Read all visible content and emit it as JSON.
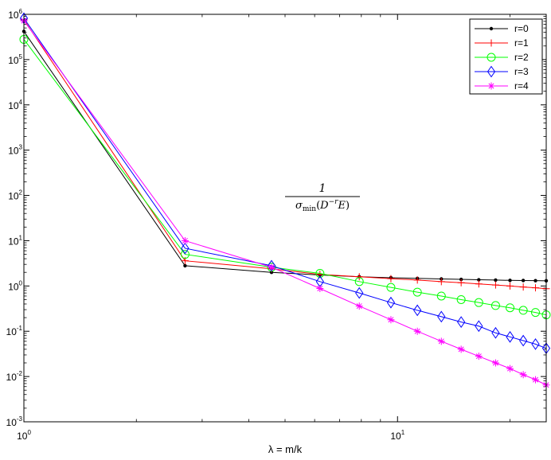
{
  "chart_data": {
    "type": "line",
    "title": "",
    "xlabel": "λ = m/k",
    "ylabel": "",
    "xscale": "log",
    "yscale": "log",
    "xlim": [
      1,
      25
    ],
    "ylim": [
      0.001,
      1000000
    ],
    "grid": false,
    "legend_position": "top-right",
    "x_tick_labels": [
      {
        "base": "10",
        "exp": "0"
      },
      {
        "base": "10",
        "exp": "1"
      }
    ],
    "y_tick_labels": [
      {
        "base": "10",
        "exp": "-3"
      },
      {
        "base": "10",
        "exp": "-2"
      },
      {
        "base": "10",
        "exp": "-1"
      },
      {
        "base": "10",
        "exp": "0"
      },
      {
        "base": "10",
        "exp": "1"
      },
      {
        "base": "10",
        "exp": "2"
      },
      {
        "base": "10",
        "exp": "3"
      },
      {
        "base": "10",
        "exp": "4"
      },
      {
        "base": "10",
        "exp": "5"
      },
      {
        "base": "10",
        "exp": "6"
      }
    ],
    "annotation": {
      "numerator": "1",
      "sigma": "σ",
      "sub": "min",
      "open": "(",
      "D": "D",
      "exp": "−r",
      "E": "E",
      "close": ")"
    },
    "series": [
      {
        "name": "r=0",
        "color": "#000000",
        "marker": "dot",
        "x": [
          1,
          2.7,
          4.6,
          6.2,
          7.9,
          9.6,
          11.3,
          13.1,
          14.8,
          16.5,
          18.3,
          20.0,
          21.7,
          23.4,
          25.0
        ],
        "y": [
          420000,
          2.8,
          2.0,
          1.75,
          1.6,
          1.52,
          1.47,
          1.43,
          1.4,
          1.37,
          1.35,
          1.33,
          1.32,
          1.31,
          1.3
        ]
      },
      {
        "name": "r=1",
        "color": "#ff0000",
        "marker": "plus",
        "x": [
          1,
          2.7,
          4.6,
          6.2,
          7.9,
          9.6,
          11.3,
          13.1,
          14.8,
          16.5,
          18.3,
          20.0,
          21.7,
          23.4,
          25.0
        ],
        "y": [
          760000,
          3.6,
          2.4,
          1.8,
          1.6,
          1.45,
          1.35,
          1.25,
          1.18,
          1.11,
          1.05,
          1.0,
          0.95,
          0.91,
          0.87
        ]
      },
      {
        "name": "r=2",
        "color": "#00ff00",
        "marker": "circle",
        "x": [
          1,
          2.7,
          4.6,
          6.2,
          7.9,
          9.6,
          11.3,
          13.1,
          14.8,
          16.5,
          18.3,
          20.0,
          21.7,
          23.4,
          25.0
        ],
        "y": [
          280000,
          5.0,
          2.6,
          1.9,
          1.25,
          0.93,
          0.73,
          0.6,
          0.5,
          0.43,
          0.37,
          0.33,
          0.29,
          0.26,
          0.23
        ]
      },
      {
        "name": "r=3",
        "color": "#0000ff",
        "marker": "diamond",
        "x": [
          1,
          2.7,
          4.6,
          6.2,
          7.9,
          9.6,
          11.3,
          13.1,
          14.8,
          16.5,
          18.3,
          20.0,
          21.7,
          23.4,
          25.0
        ],
        "y": [
          820000,
          6.8,
          2.8,
          1.25,
          0.7,
          0.43,
          0.29,
          0.21,
          0.16,
          0.13,
          0.092,
          0.075,
          0.062,
          0.052,
          0.042
        ]
      },
      {
        "name": "r=4",
        "color": "#ff00ff",
        "marker": "star",
        "x": [
          1,
          2.7,
          4.6,
          6.2,
          7.9,
          9.6,
          11.3,
          13.1,
          14.8,
          16.5,
          18.3,
          20.0,
          21.7,
          23.4,
          25.0
        ],
        "y": [
          720000,
          10,
          2.6,
          0.88,
          0.36,
          0.18,
          0.1,
          0.06,
          0.04,
          0.028,
          0.02,
          0.015,
          0.011,
          0.0085,
          0.0065
        ]
      }
    ]
  }
}
